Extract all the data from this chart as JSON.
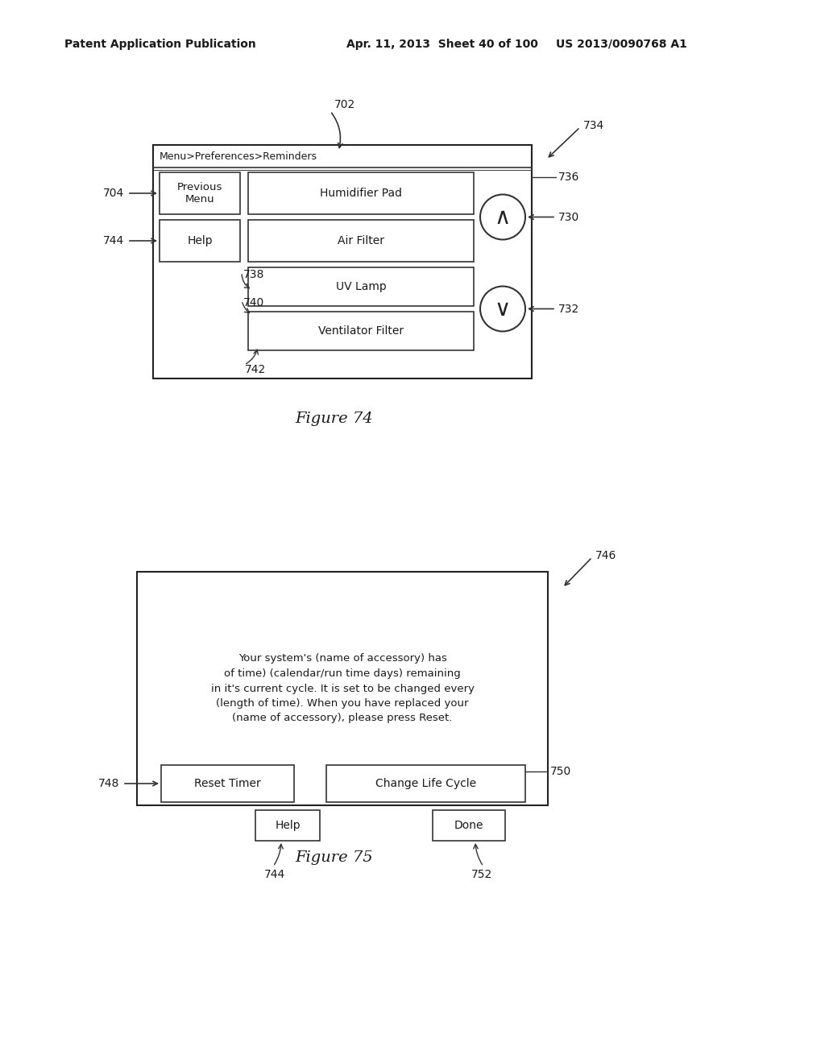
{
  "bg_color": "#ffffff",
  "header_left": "Patent Application Publication",
  "header_mid": "Apr. 11, 2013  Sheet 40 of 100",
  "header_right": "US 2013/0090768 A1",
  "fig74": {
    "title": "Figure 74",
    "screen_label": "702",
    "breadcrumb": "Menu>Preferences>Reminders",
    "prev_menu_label": "Previous\nMenu",
    "ref_704": "704",
    "ref_736": "736",
    "ref_730": "730",
    "ref_744": "744",
    "ref_738": "738",
    "ref_740": "740",
    "ref_742": "742",
    "ref_732": "732",
    "ref_734": "734",
    "help_label": "Help",
    "items": [
      "Humidifier Pad",
      "Air Filter",
      "UV Lamp",
      "Ventilator Filter"
    ]
  },
  "fig75": {
    "title": "Figure 75",
    "screen_label": "746",
    "body_text": "Your system's (name of accessory) has\nof time) (calendar/run time days) remaining\nin it's current cycle. It is set to be changed every\n(length of time). When you have replaced your\n(name of accessory), please press Reset.",
    "btn_reset": "Reset Timer",
    "btn_change": "Change Life Cycle",
    "btn_help": "Help",
    "btn_done": "Done",
    "ref_748": "748",
    "ref_750": "750",
    "ref_744": "744",
    "ref_752": "752"
  }
}
